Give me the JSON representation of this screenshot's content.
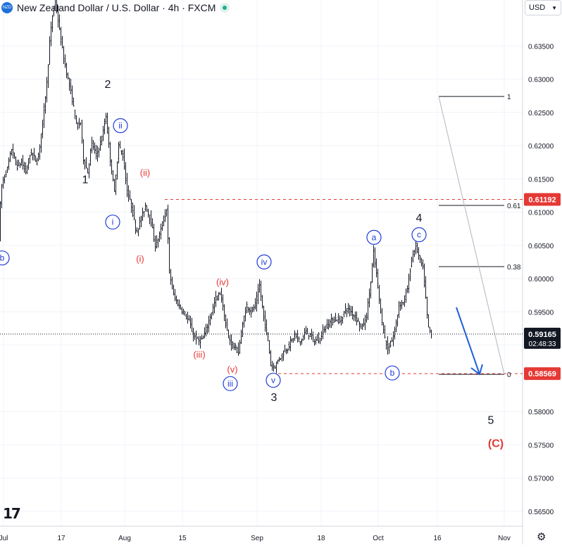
{
  "header": {
    "title": "New Zealand Dollar / U.S. Dollar · 4h · FXCM",
    "logo_text": "NZD",
    "currency_label": "USD",
    "currency_icon": "chevron-down-icon"
  },
  "chart_data": {
    "type": "candlestick",
    "symbol": "NZDUSD",
    "timeframe": "4h",
    "ylim": [
      0.5613,
      0.6431
    ],
    "y_ticks": [
      "0.63500",
      "0.63000",
      "0.62500",
      "0.62000",
      "0.61500",
      "0.61000",
      "0.60500",
      "0.60000",
      "0.59500",
      "0.59000",
      "0.58000",
      "0.57500",
      "0.57000",
      "0.56500"
    ],
    "x_ticks": [
      "Jul",
      "17",
      "Aug",
      "15",
      "Sep",
      "18",
      "Oct",
      "16",
      "Nov"
    ],
    "price_path": [
      [
        0,
        0.6062
      ],
      [
        3,
        0.6135
      ],
      [
        8,
        0.6155
      ],
      [
        12,
        0.6165
      ],
      [
        18,
        0.6195
      ],
      [
        25,
        0.6168
      ],
      [
        32,
        0.6175
      ],
      [
        38,
        0.616
      ],
      [
        45,
        0.619
      ],
      [
        55,
        0.6175
      ],
      [
        62,
        0.6235
      ],
      [
        68,
        0.6295
      ],
      [
        72,
        0.6355
      ],
      [
        76,
        0.6395
      ],
      [
        80,
        0.642
      ],
      [
        85,
        0.638
      ],
      [
        92,
        0.633
      ],
      [
        98,
        0.63
      ],
      [
        104,
        0.627
      ],
      [
        110,
        0.623
      ],
      [
        116,
        0.6235
      ],
      [
        120,
        0.618
      ],
      [
        126,
        0.616
      ],
      [
        132,
        0.6205
      ],
      [
        138,
        0.6185
      ],
      [
        146,
        0.621
      ],
      [
        152,
        0.6245
      ],
      [
        156,
        0.62
      ],
      [
        160,
        0.616
      ],
      [
        164,
        0.613
      ],
      [
        170,
        0.62
      ],
      [
        176,
        0.6185
      ],
      [
        182,
        0.613
      ],
      [
        188,
        0.611
      ],
      [
        195,
        0.607
      ],
      [
        202,
        0.609
      ],
      [
        208,
        0.611
      ],
      [
        215,
        0.609
      ],
      [
        222,
        0.605
      ],
      [
        228,
        0.6065
      ],
      [
        234,
        0.609
      ],
      [
        238,
        0.6105
      ],
      [
        242,
        0.601
      ],
      [
        248,
        0.5975
      ],
      [
        255,
        0.596
      ],
      [
        262,
        0.595
      ],
      [
        270,
        0.5935
      ],
      [
        276,
        0.5915
      ],
      [
        283,
        0.5905
      ],
      [
        290,
        0.591
      ],
      [
        296,
        0.593
      ],
      [
        302,
        0.595
      ],
      [
        308,
        0.597
      ],
      [
        315,
        0.598
      ],
      [
        320,
        0.594
      ],
      [
        326,
        0.591
      ],
      [
        332,
        0.59
      ],
      [
        340,
        0.589
      ],
      [
        346,
        0.593
      ],
      [
        352,
        0.596
      ],
      [
        358,
        0.595
      ],
      [
        364,
        0.596
      ],
      [
        370,
        0.599
      ],
      [
        376,
        0.594
      ],
      [
        382,
        0.591
      ],
      [
        386,
        0.587
      ],
      [
        392,
        0.5868
      ],
      [
        398,
        0.588
      ],
      [
        405,
        0.589
      ],
      [
        412,
        0.59
      ],
      [
        420,
        0.5915
      ],
      [
        428,
        0.5905
      ],
      [
        435,
        0.592
      ],
      [
        442,
        0.5915
      ],
      [
        448,
        0.5905
      ],
      [
        455,
        0.591
      ],
      [
        462,
        0.5925
      ],
      [
        470,
        0.5935
      ],
      [
        478,
        0.594
      ],
      [
        485,
        0.5935
      ],
      [
        492,
        0.5955
      ],
      [
        500,
        0.595
      ],
      [
        508,
        0.594
      ],
      [
        515,
        0.5925
      ],
      [
        522,
        0.5945
      ],
      [
        528,
        0.5995
      ],
      [
        532,
        0.604
      ],
      [
        538,
        0.599
      ],
      [
        543,
        0.594
      ],
      [
        548,
        0.591
      ],
      [
        553,
        0.589
      ],
      [
        557,
        0.5905
      ],
      [
        562,
        0.592
      ],
      [
        568,
        0.596
      ],
      [
        574,
        0.5965
      ],
      [
        580,
        0.5985
      ],
      [
        586,
        0.603
      ],
      [
        592,
        0.605
      ],
      [
        597,
        0.603
      ],
      [
        602,
        0.6015
      ],
      [
        606,
        0.597
      ],
      [
        609,
        0.593
      ],
      [
        613,
        0.5915
      ]
    ],
    "current_price": "0.59165",
    "countdown": "02:48:33",
    "fib": {
      "levels": [
        {
          "ratio": "1",
          "price": 0.6274
        },
        {
          "ratio": "0.61",
          "price": 0.611
        },
        {
          "ratio": "0.38",
          "price": 0.6018
        },
        {
          "ratio": "0",
          "price": 0.5856
        }
      ],
      "upper_line_price": "0.61192",
      "lower_line_price": "0.58569",
      "upper_price": 0.6119,
      "lower_price": 0.5857
    },
    "projection_arrow": {
      "color": "#1e5fd8"
    },
    "wave_labels": [
      {
        "text": "1",
        "style": "plain-black",
        "price": 0.615
      },
      {
        "text": "2",
        "style": "plain-black",
        "price": 0.6293
      },
      {
        "text": "3",
        "style": "plain-black",
        "price": 0.5822
      },
      {
        "text": "4",
        "style": "plain-black",
        "price": 0.6092
      },
      {
        "text": "5",
        "style": "plain-black",
        "price": 0.5788
      },
      {
        "text": "(C)",
        "style": "red-bold",
        "price": 0.5752
      },
      {
        "text": "(i)",
        "style": "red",
        "price": 0.603
      },
      {
        "text": "(ii)",
        "style": "red",
        "price": 0.616
      },
      {
        "text": "(iii)",
        "style": "red",
        "price": 0.5886
      },
      {
        "text": "(iv)",
        "style": "red",
        "price": 0.5995
      },
      {
        "text": "(v)",
        "style": "red",
        "price": 0.5864
      },
      {
        "text": "i",
        "style": "blue-circle",
        "price": 0.6085
      },
      {
        "text": "ii",
        "style": "blue-circle",
        "price": 0.623
      },
      {
        "text": "iii",
        "style": "blue-circle",
        "price": 0.5842
      },
      {
        "text": "iv",
        "style": "blue-circle",
        "price": 0.6025
      },
      {
        "text": "v",
        "style": "blue-circle",
        "price": 0.5847
      },
      {
        "text": "a",
        "style": "blue-circle",
        "price": 0.6062
      },
      {
        "text": "b",
        "style": "blue-circle",
        "price": 0.5858
      },
      {
        "text": "c",
        "style": "blue-circle",
        "price": 0.6066
      },
      {
        "text": "b",
        "style": "blue-circle",
        "price": 0.6031
      }
    ],
    "colors": {
      "candle": "#131722",
      "fib_dashed": "#e53935",
      "price_badge": "#e53935",
      "current_badge": "#131722",
      "grid": "#f0f3fa",
      "axis_text": "#131722",
      "wave_red": "#e53935",
      "wave_blue": "#1e3bd8"
    }
  },
  "footer": {
    "tv_logo": "17",
    "settings_icon": "settings-gear-icon"
  }
}
